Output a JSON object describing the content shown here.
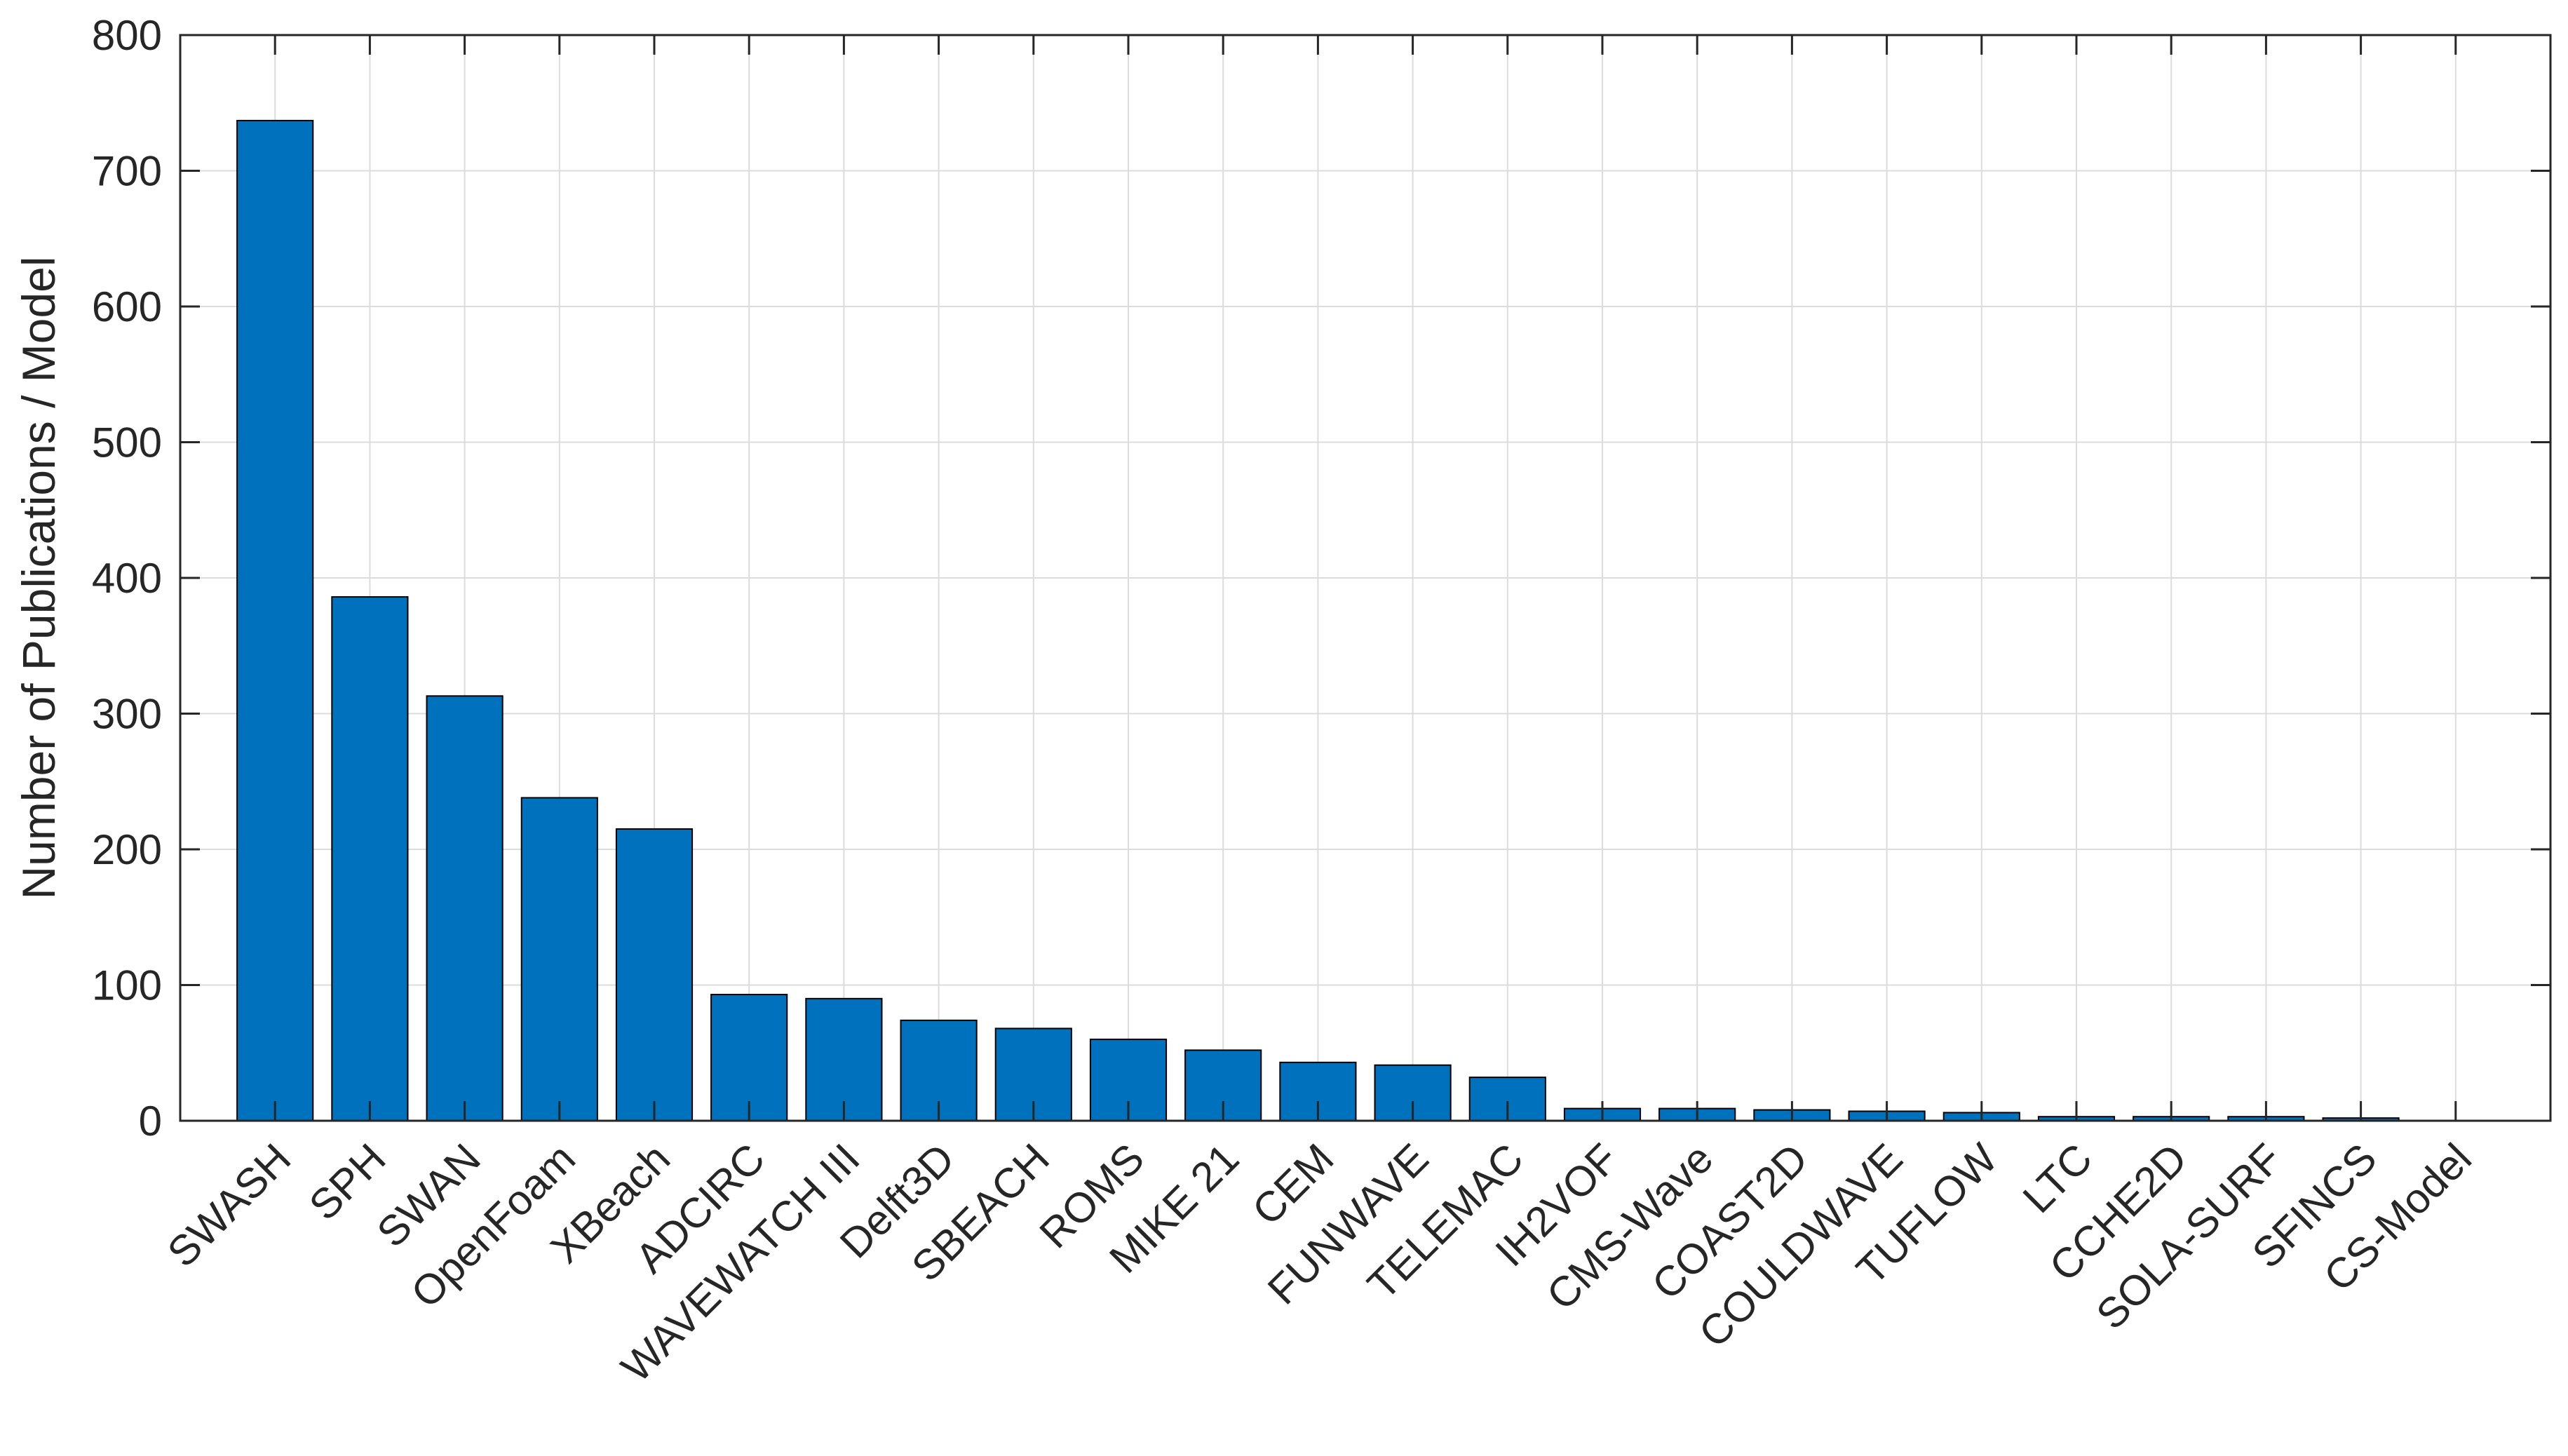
{
  "chart_data": {
    "type": "bar",
    "title": "",
    "xlabel": "",
    "ylabel": "Number of Publications / Model",
    "ylim": [
      0,
      800
    ],
    "yticks": [
      0,
      100,
      200,
      300,
      400,
      500,
      600,
      700,
      800
    ],
    "grid": true,
    "legend": "none",
    "bar_color": "#0072BD",
    "bar_edge_color": "#000000",
    "categories": [
      "SWASH",
      "SPH",
      "SWAN",
      "OpenFoam",
      "XBeach",
      "ADCIRC",
      "WAVEWATCH III",
      "Delft3D",
      "SBEACH",
      "ROMS",
      "MIKE 21",
      "CEM",
      "FUNWAVE",
      "TELEMAC",
      "IH2VOF",
      "CMS-Wave",
      "COAST2D",
      "COULDWAVE",
      "TUFLOW",
      "LTC",
      "CCHE2D",
      "SOLA-SURF",
      "SFINCS",
      "CS-Model"
    ],
    "values": [
      737,
      386,
      313,
      238,
      215,
      93,
      90,
      74,
      68,
      60,
      52,
      43,
      41,
      32,
      9,
      9,
      8,
      7,
      6,
      3,
      3,
      3,
      2,
      0
    ]
  }
}
